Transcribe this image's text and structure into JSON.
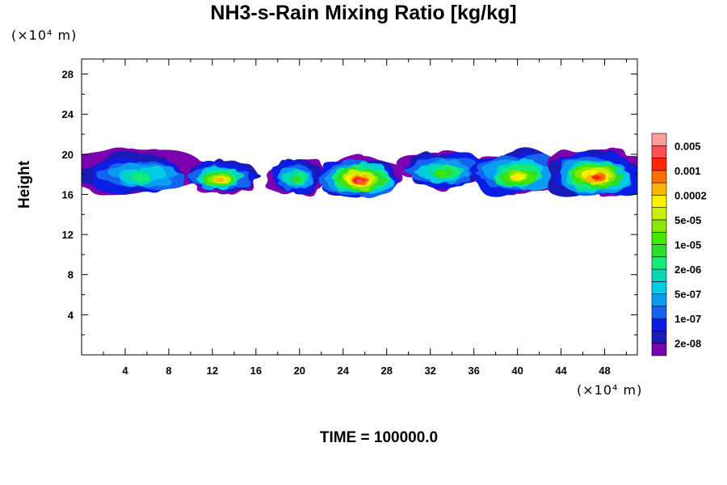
{
  "chart_data": {
    "type": "heatmap",
    "title": "NH3-s-Rain Mixing Ratio [kg/kg]",
    "xlabel": "",
    "ylabel": "Height",
    "x_unit": "(×10⁴ m)",
    "y_unit": "(×10⁴ m)",
    "xlim": [
      0,
      51
    ],
    "ylim": [
      0,
      29.5
    ],
    "x_ticks": [
      4,
      8,
      12,
      16,
      20,
      24,
      28,
      32,
      36,
      40,
      44,
      48
    ],
    "y_ticks": [
      4,
      8,
      12,
      16,
      20,
      24,
      28
    ],
    "grid": false,
    "footer": "TIME = 100000.0",
    "colorbar": {
      "levels": [
        "2e-08",
        "1e-07",
        "5e-07",
        "2e-06",
        "1e-05",
        "5e-05",
        "0.0002",
        "0.001",
        "0.005"
      ],
      "colors": [
        "#7a00b0",
        "#1a1ab8",
        "#0a1ee6",
        "#1464f0",
        "#0a9cf0",
        "#00cce6",
        "#00d8b4",
        "#16ea78",
        "#2cde2c",
        "#44e600",
        "#8ae600",
        "#c8ee00",
        "#ffee00",
        "#ffb400",
        "#ff6e00",
        "#ff2800",
        "#ff5050",
        "#ff9c9c"
      ]
    },
    "regions": [
      {
        "x": [
          0,
          10.5
        ],
        "y": [
          16.2,
          20
        ],
        "peak": 7
      },
      {
        "x": [
          10,
          15.5
        ],
        "y": [
          16.5,
          19
        ],
        "peak": 13
      },
      {
        "x": [
          17.5,
          22
        ],
        "y": [
          16.3,
          19.5
        ],
        "peak": 8
      },
      {
        "x": [
          22,
          29
        ],
        "y": [
          16,
          19.5
        ],
        "peak": 16
      },
      {
        "x": [
          29.5,
          37
        ],
        "y": [
          17,
          20
        ],
        "peak": 9
      },
      {
        "x": [
          36,
          44
        ],
        "y": [
          16.3,
          20
        ],
        "peak": 12
      },
      {
        "x": [
          43.5,
          51
        ],
        "y": [
          16.2,
          20
        ],
        "peak": 15
      }
    ]
  }
}
